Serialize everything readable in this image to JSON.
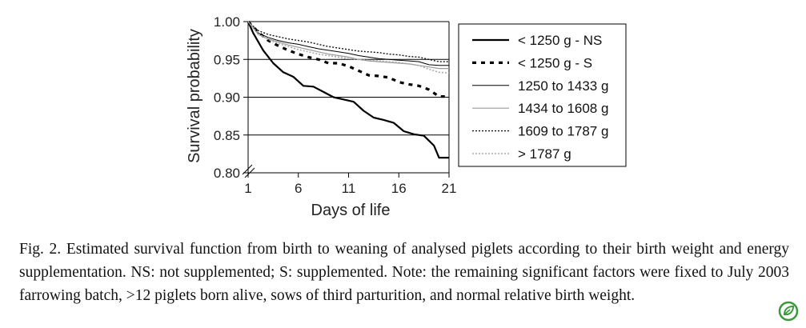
{
  "chart_data": {
    "type": "line",
    "xlabel": "Days of life",
    "ylabel": "Survival probability",
    "xlim": [
      1,
      21
    ],
    "ylim": [
      0.8,
      1.0
    ],
    "x_ticks": [
      1,
      6,
      11,
      16,
      21
    ],
    "x_tick_labels": [
      "1",
      "6",
      "11",
      "16",
      "21"
    ],
    "y_ticks": [
      0.8,
      0.85,
      0.9,
      0.95,
      1.0
    ],
    "y_tick_labels": [
      "0.80",
      "0.85",
      "0.90",
      "0.95",
      "1.00"
    ],
    "y_axis_break": true,
    "grid": "horizontal",
    "legend_position": "right",
    "legend_order": [
      "s_gt1787",
      "s1609",
      "s1434",
      "s1250",
      "lt1250_S",
      "lt1250_NS"
    ],
    "series": [
      {
        "name": "< 1250 g - NS",
        "id": "lt1250_NS",
        "style": "solid-thick",
        "color": "#000000",
        "points": [
          [
            1,
            1.0
          ],
          [
            1.5,
            0.985
          ],
          [
            2.5,
            0.962
          ],
          [
            3.5,
            0.945
          ],
          [
            4.5,
            0.933
          ],
          [
            5.5,
            0.927
          ],
          [
            6.5,
            0.915
          ],
          [
            7.5,
            0.914
          ],
          [
            8.5,
            0.907
          ],
          [
            9.5,
            0.9
          ],
          [
            10.5,
            0.897
          ],
          [
            11.5,
            0.894
          ],
          [
            12.5,
            0.882
          ],
          [
            13.5,
            0.873
          ],
          [
            14.5,
            0.87
          ],
          [
            15.5,
            0.866
          ],
          [
            16.5,
            0.855
          ],
          [
            17.5,
            0.851
          ],
          [
            18.5,
            0.849
          ],
          [
            19.5,
            0.836
          ],
          [
            20,
            0.82
          ],
          [
            21,
            0.82
          ]
        ]
      },
      {
        "name": "< 1250 g - S",
        "id": "lt1250_S",
        "style": "dashed-thick",
        "color": "#000000",
        "points": [
          [
            1,
            1.0
          ],
          [
            2,
            0.986
          ],
          [
            3,
            0.975
          ],
          [
            4,
            0.968
          ],
          [
            5,
            0.962
          ],
          [
            6,
            0.957
          ],
          [
            7,
            0.953
          ],
          [
            8,
            0.95
          ],
          [
            9,
            0.945
          ],
          [
            10,
            0.945
          ],
          [
            11,
            0.941
          ],
          [
            12,
            0.935
          ],
          [
            13,
            0.929
          ],
          [
            14,
            0.928
          ],
          [
            15,
            0.926
          ],
          [
            16,
            0.92
          ],
          [
            17,
            0.917
          ],
          [
            18,
            0.915
          ],
          [
            19,
            0.91
          ],
          [
            20,
            0.901
          ],
          [
            21,
            0.901
          ]
        ]
      },
      {
        "name": "1250 to 1433 g",
        "id": "s1250",
        "style": "solid-thin",
        "color": "#000000",
        "points": [
          [
            1,
            1.0
          ],
          [
            2,
            0.985
          ],
          [
            3,
            0.979
          ],
          [
            4,
            0.975
          ],
          [
            5,
            0.972
          ],
          [
            6,
            0.97
          ],
          [
            7,
            0.967
          ],
          [
            8,
            0.964
          ],
          [
            9,
            0.962
          ],
          [
            10,
            0.96
          ],
          [
            11,
            0.958
          ],
          [
            12,
            0.955
          ],
          [
            13,
            0.953
          ],
          [
            14,
            0.951
          ],
          [
            15,
            0.95
          ],
          [
            16,
            0.949
          ],
          [
            17,
            0.948
          ],
          [
            18,
            0.947
          ],
          [
            19,
            0.943
          ],
          [
            20,
            0.942
          ],
          [
            21,
            0.942
          ]
        ]
      },
      {
        "name": "1434 to 1608 g",
        "id": "s1434",
        "style": "solid-thin-gray",
        "color": "#9a9a9a",
        "points": [
          [
            1,
            1.0
          ],
          [
            2,
            0.983
          ],
          [
            3,
            0.977
          ],
          [
            4,
            0.973
          ],
          [
            5,
            0.969
          ],
          [
            6,
            0.966
          ],
          [
            7,
            0.963
          ],
          [
            8,
            0.96
          ],
          [
            9,
            0.957
          ],
          [
            10,
            0.955
          ],
          [
            11,
            0.953
          ],
          [
            12,
            0.95
          ],
          [
            13,
            0.948
          ],
          [
            14,
            0.947
          ],
          [
            15,
            0.946
          ],
          [
            16,
            0.945
          ],
          [
            17,
            0.944
          ],
          [
            18,
            0.942
          ],
          [
            19,
            0.94
          ],
          [
            20,
            0.938
          ],
          [
            21,
            0.938
          ]
        ]
      },
      {
        "name": "1609 to 1787 g",
        "id": "s1609",
        "style": "dotted",
        "color": "#111111",
        "points": [
          [
            1,
            1.0
          ],
          [
            2,
            0.988
          ],
          [
            3,
            0.983
          ],
          [
            4,
            0.98
          ],
          [
            5,
            0.977
          ],
          [
            6,
            0.975
          ],
          [
            7,
            0.973
          ],
          [
            8,
            0.97
          ],
          [
            9,
            0.967
          ],
          [
            10,
            0.965
          ],
          [
            11,
            0.963
          ],
          [
            12,
            0.961
          ],
          [
            13,
            0.96
          ],
          [
            14,
            0.959
          ],
          [
            15,
            0.957
          ],
          [
            16,
            0.956
          ],
          [
            17,
            0.954
          ],
          [
            18,
            0.953
          ],
          [
            19,
            0.95
          ],
          [
            20,
            0.947
          ],
          [
            21,
            0.947
          ]
        ]
      },
      {
        "name": "> 1787 g",
        "id": "s_gt1787",
        "style": "dotted-gray",
        "color": "#aaaaaa",
        "points": [
          [
            1,
            1.0
          ],
          [
            2,
            0.984
          ],
          [
            3,
            0.976
          ],
          [
            4,
            0.971
          ],
          [
            5,
            0.967
          ],
          [
            6,
            0.963
          ],
          [
            7,
            0.96
          ],
          [
            8,
            0.957
          ],
          [
            9,
            0.955
          ],
          [
            10,
            0.953
          ],
          [
            11,
            0.951
          ],
          [
            12,
            0.95
          ],
          [
            13,
            0.949
          ],
          [
            14,
            0.948
          ],
          [
            15,
            0.947
          ],
          [
            16,
            0.946
          ],
          [
            17,
            0.944
          ],
          [
            18,
            0.942
          ],
          [
            19,
            0.937
          ],
          [
            20,
            0.933
          ],
          [
            21,
            0.932
          ]
        ]
      }
    ]
  },
  "caption": {
    "text": "Fig. 2.  Estimated survival function from birth to weaning of analysed piglets according to their birth weight and energy supplementation. NS: not supplemented; S: supplemented. Note: the remaining significant factors were fixed to July 2003 farrowing batch, >12 piglets born alive, sows of third parturition, and normal relative birth weight."
  },
  "icons": {
    "corner_badge": "leaf-icon"
  },
  "colors": {
    "badge_green": "#3a9a3a"
  }
}
